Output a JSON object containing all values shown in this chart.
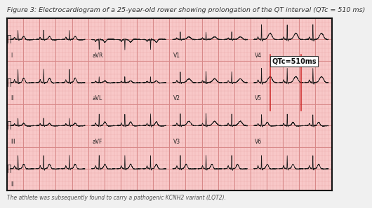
{
  "title": "Figure 3: Electrocardiogram of a 25-year-old rower showing prolongation of the QT interval (QTc = 510 ms)",
  "footnote": "The athlete was subsequently found to carry a pathogenic KCNH2 variant (LQT2).",
  "fig_bg": "#f0f0f0",
  "panel_bg": "#f8c8c8",
  "grid_minor_color": "#e8a8a8",
  "grid_major_color": "#d88888",
  "ecg_color": "#1a1a1a",
  "border_color": "#111111",
  "qtc_box_text": "QTc=510ms",
  "qtc_box_facecolor": "#ffffff",
  "qtc_box_edgecolor": "#333333",
  "qtc_text_color": "#111111",
  "red_line_color": "#cc2222",
  "row_labels_left": [
    "I",
    "II",
    "III",
    "II"
  ],
  "row_labels_mid1": [
    "aVR",
    "aVL",
    "aVF",
    ""
  ],
  "row_labels_mid2": [
    "V1",
    "V2",
    "V3",
    ""
  ],
  "row_labels_right": [
    "V4",
    "V5",
    "V6",
    ""
  ],
  "title_fontsize": 6.8,
  "footnote_fontsize": 5.5,
  "label_fontsize": 5.5,
  "qtc_fontsize": 7.0
}
